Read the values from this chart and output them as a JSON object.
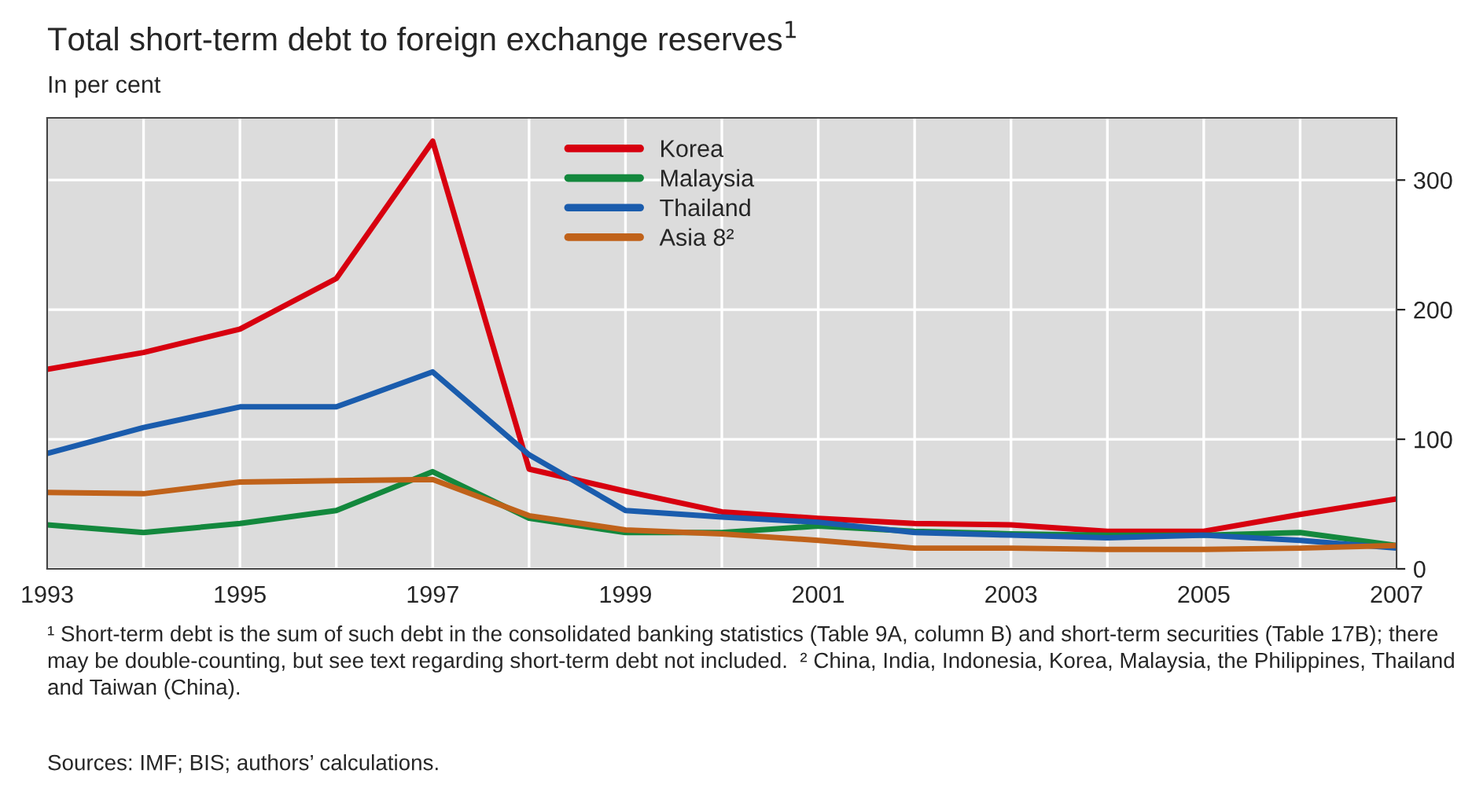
{
  "chart_data": {
    "type": "line",
    "title": "Total short-term debt to foreign exchange reserves$^{1}$",
    "subtitle": "In per cent",
    "x": [
      1993,
      1994,
      1995,
      1996,
      1997,
      1998,
      1999,
      2000,
      2001,
      2002,
      2003,
      2004,
      2005,
      2006,
      2007
    ],
    "series": [
      {
        "name": "Korea",
        "color": "#d7000f",
        "values": [
          154,
          167,
          185,
          224,
          330,
          77,
          60,
          44,
          39,
          35,
          34,
          29,
          29,
          42,
          54
        ]
      },
      {
        "name": "Malaysia",
        "color": "#13883d",
        "values": [
          34,
          28,
          35,
          45,
          75,
          39,
          28,
          28,
          33,
          29,
          27,
          26,
          26,
          28,
          18
        ]
      },
      {
        "name": "Thailand",
        "color": "#1a5cad",
        "values": [
          89,
          109,
          125,
          125,
          152,
          88,
          45,
          40,
          36,
          28,
          26,
          24,
          26,
          22,
          16
        ]
      },
      {
        "name": "Asia 8²",
        "color": "#c0621a",
        "values": [
          59,
          58,
          67,
          68,
          69,
          41,
          30,
          27,
          22,
          16,
          16,
          15,
          15,
          16,
          18
        ]
      }
    ],
    "xlim": [
      1993,
      2007
    ],
    "ylim": [
      0,
      348
    ],
    "xticks": [
      1993,
      {
        "value": 1994,
        "label": null
      },
      1995,
      {
        "value": 1996,
        "label": null
      },
      1997,
      {
        "value": 1998,
        "label": null
      },
      1999,
      {
        "value": 2000,
        "label": null
      },
      2001,
      {
        "value": 2002,
        "label": null
      },
      2003,
      {
        "value": 2004,
        "label": null
      },
      2005,
      {
        "value": 2006,
        "label": null
      },
      2007
    ],
    "yticks": [
      0,
      100,
      200,
      300
    ],
    "grid": true,
    "legend": "top",
    "line_style": "solid",
    "annotations": [
      "¹ Short-term debt is the sum of such debt in the consolidated banking statistics (Table 9A, column B) and short-term securities (Table 17B); there may be double-counting, but see text regarding short-term debt not included.  ² China, India, Indonesia, Korea, Malaysia, the Philippines, Thailand and Taiwan (China).",
      "Sources: IMF; BIS; authors’ calculations."
    ]
  }
}
